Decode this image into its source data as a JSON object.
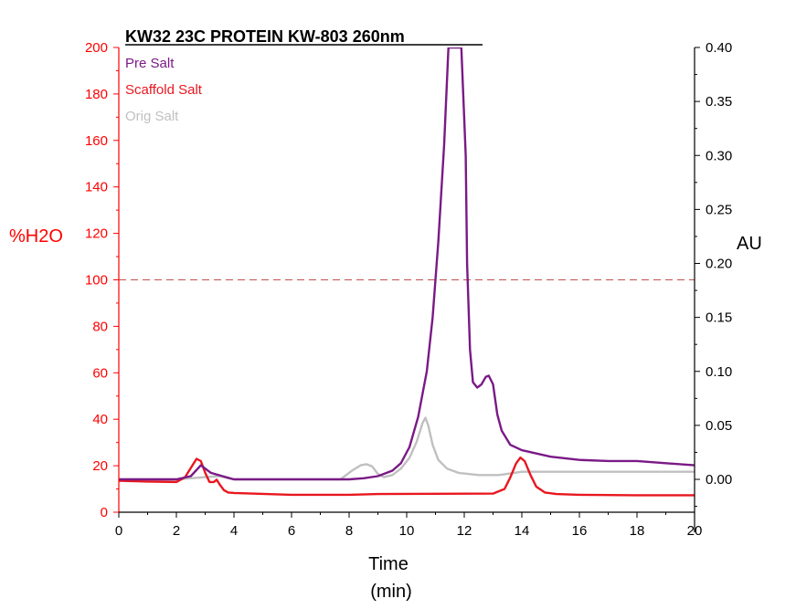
{
  "chart_data": {
    "type": "line",
    "title": "KW32 23C PROTEIN KW-803 260nm",
    "xlabel_line1": "Time",
    "xlabel_line2": "(min)",
    "ylabel_left": "%H2O",
    "ylabel_right": "AU",
    "xlim": [
      0,
      20
    ],
    "ylim_left": [
      0,
      200
    ],
    "ylim_right": [
      -0.03,
      0.4
    ],
    "x_ticks": [
      "0",
      "2",
      "4",
      "6",
      "8",
      "10",
      "12",
      "14",
      "16",
      "18",
      "20"
    ],
    "y_left_ticks": [
      "0",
      "20",
      "40",
      "60",
      "80",
      "100",
      "120",
      "140",
      "160",
      "180",
      "200"
    ],
    "y_right_ticks": [
      "0.00",
      "0.05",
      "0.10",
      "0.15",
      "0.20",
      "0.25",
      "0.30",
      "0.35",
      "0.40"
    ],
    "grid": false,
    "legend_position": "top-left",
    "reference_line": {
      "axis": "left",
      "value": 100,
      "style": "dashed",
      "color": "#c0504d"
    },
    "colors": {
      "left_axis": "#ff0000",
      "right_axis": "#000000",
      "pre_salt": "#7a1a86",
      "scaffold_salt": "#e8171f",
      "orig_salt": "#c0c0c0"
    },
    "series": [
      {
        "name": "Pre Salt",
        "axis": "right",
        "color": "#7a1a86",
        "x": [
          0,
          2,
          2.5,
          2.85,
          3.2,
          3.6,
          4,
          5,
          6,
          7,
          8,
          8.5,
          9,
          9.5,
          9.8,
          10.1,
          10.4,
          10.7,
          10.9,
          11.1,
          11.3,
          11.45,
          11.9,
          12.05,
          12.1,
          12.2,
          12.3,
          12.45,
          12.6,
          12.75,
          12.85,
          13.0,
          13.15,
          13.3,
          13.6,
          14,
          15,
          16,
          17,
          18,
          19,
          20
        ],
        "y": [
          0.0,
          0.0,
          0.003,
          0.013,
          0.006,
          0.003,
          0.0,
          0.0,
          0.0,
          0.0,
          0.0,
          0.001,
          0.003,
          0.008,
          0.015,
          0.03,
          0.058,
          0.1,
          0.15,
          0.22,
          0.31,
          0.4,
          0.4,
          0.3,
          0.2,
          0.12,
          0.09,
          0.085,
          0.088,
          0.095,
          0.096,
          0.088,
          0.06,
          0.045,
          0.032,
          0.027,
          0.021,
          0.018,
          0.017,
          0.017,
          0.015,
          0.013
        ]
      },
      {
        "name": "Scaffold Salt",
        "axis": "left",
        "color": "#e8171f",
        "x": [
          0,
          1,
          2,
          2.3,
          2.55,
          2.7,
          2.85,
          3.0,
          3.15,
          3.3,
          3.4,
          3.5,
          3.65,
          3.8,
          4,
          6,
          8,
          9,
          13,
          13.4,
          13.6,
          13.8,
          13.95,
          14.1,
          14.3,
          14.5,
          14.8,
          15.2,
          16,
          18,
          20
        ],
        "y": [
          13.5,
          13.2,
          13.0,
          15.0,
          20.0,
          23.0,
          22.0,
          17.0,
          13.0,
          13.0,
          14.0,
          12.0,
          9.5,
          8.5,
          8.3,
          7.5,
          7.5,
          7.8,
          8.0,
          10.0,
          15.0,
          21.0,
          23.5,
          22.0,
          16.0,
          11.0,
          8.5,
          7.8,
          7.5,
          7.3,
          7.3
        ]
      },
      {
        "name": "Orig Salt",
        "axis": "right",
        "color": "#c0c0c0",
        "x": [
          0,
          2,
          3,
          3.5,
          3.8,
          4,
          5,
          6,
          7,
          7.7,
          8.1,
          8.4,
          8.6,
          8.8,
          9.0,
          9.2,
          9.5,
          9.8,
          10.1,
          10.35,
          10.55,
          10.65,
          10.75,
          10.9,
          11.1,
          11.4,
          11.8,
          12.5,
          13.2,
          14,
          15,
          16,
          17,
          18,
          19,
          20
        ],
        "y": [
          0.0,
          0.0,
          0.002,
          0.003,
          0.001,
          0.0,
          0.0,
          0.0,
          0.0,
          0.0,
          0.008,
          0.013,
          0.014,
          0.012,
          0.005,
          0.002,
          0.004,
          0.01,
          0.02,
          0.035,
          0.052,
          0.057,
          0.05,
          0.032,
          0.018,
          0.01,
          0.006,
          0.004,
          0.004,
          0.007,
          0.007,
          0.007,
          0.007,
          0.007,
          0.007,
          0.007
        ]
      }
    ]
  }
}
